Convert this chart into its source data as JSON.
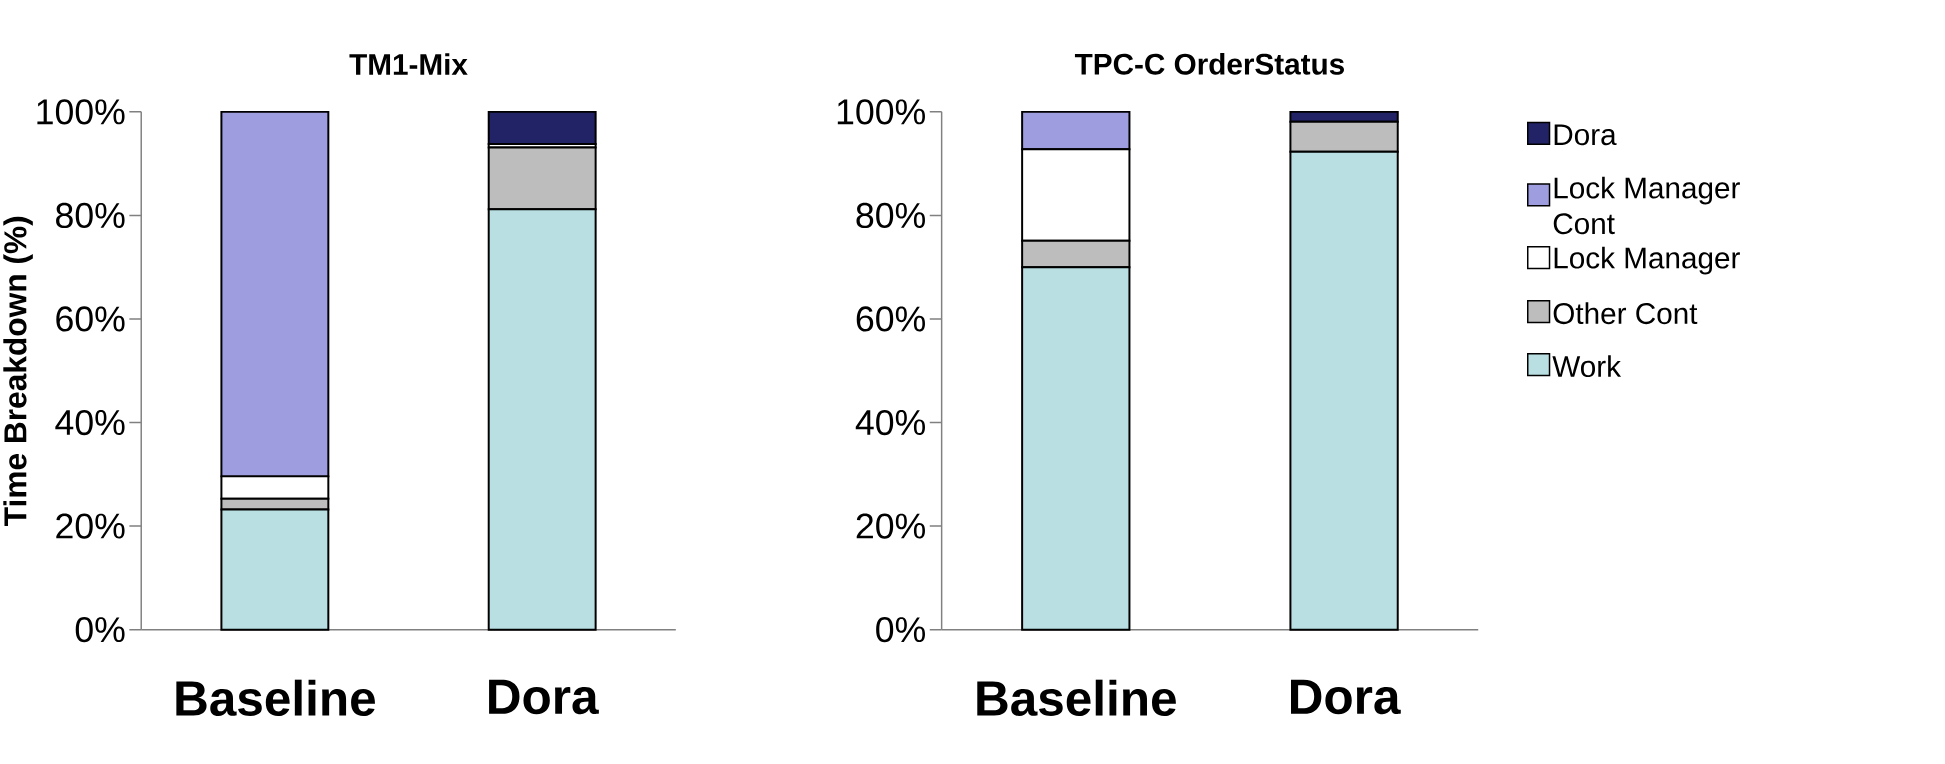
{
  "chart_data": [
    {
      "type": "bar",
      "stacked": true,
      "title": "TM1-Mix",
      "ylabel": "Time Breakdown (%)",
      "categories": [
        "Baseline",
        "Dora"
      ],
      "series": [
        {
          "color": "#b9dfe2",
          "values": [
            23.2,
            81.2
          ]
        },
        {
          "color": "#bdbdbd",
          "values": [
            2.1,
            11.9
          ]
        },
        {
          "color": "#ffffff",
          "values": [
            4.3,
            0.7
          ]
        },
        {
          "color": "#9e9ddf",
          "values": [
            70.4,
            0
          ]
        },
        {
          "color": "#222266",
          "values": [
            0,
            6.2
          ]
        }
      ],
      "ylim": [
        0,
        100
      ],
      "yticks": [
        {
          "value": 0,
          "label": "0%"
        },
        {
          "value": 20,
          "label": "20%"
        },
        {
          "value": 40,
          "label": "40%"
        },
        {
          "value": 60,
          "label": "60%"
        },
        {
          "value": 80,
          "label": "80%"
        },
        {
          "value": 100,
          "label": "100%"
        }
      ]
    },
    {
      "type": "bar",
      "stacked": true,
      "title": "TPC-C OrderStatus",
      "categories": [
        "Baseline",
        "Dora"
      ],
      "series": [
        {
          "name": "Work",
          "color": "#b9dfe2",
          "values": [
            70.0,
            92.3
          ]
        },
        {
          "name": "Other Cont",
          "color": "#bdbdbd",
          "values": [
            5.1,
            5.8
          ]
        },
        {
          "name": "Lock Manager",
          "color": "#ffffff",
          "values": [
            17.7,
            0
          ]
        },
        {
          "name": "Lock Manager Cont",
          "color": "#9e9ddf",
          "values": [
            7.2,
            0
          ]
        },
        {
          "name": "Dora",
          "color": "#222266",
          "values": [
            0,
            1.9
          ]
        }
      ],
      "ylim": [
        0,
        100
      ],
      "yticks": [
        {
          "value": 0,
          "label": "0%"
        },
        {
          "value": 20,
          "label": "20%"
        },
        {
          "value": 40,
          "label": "40%"
        },
        {
          "value": 60,
          "label": "60%"
        },
        {
          "value": 80,
          "label": "80%"
        },
        {
          "value": 100,
          "label": "100%"
        }
      ],
      "legend": "right"
    }
  ]
}
